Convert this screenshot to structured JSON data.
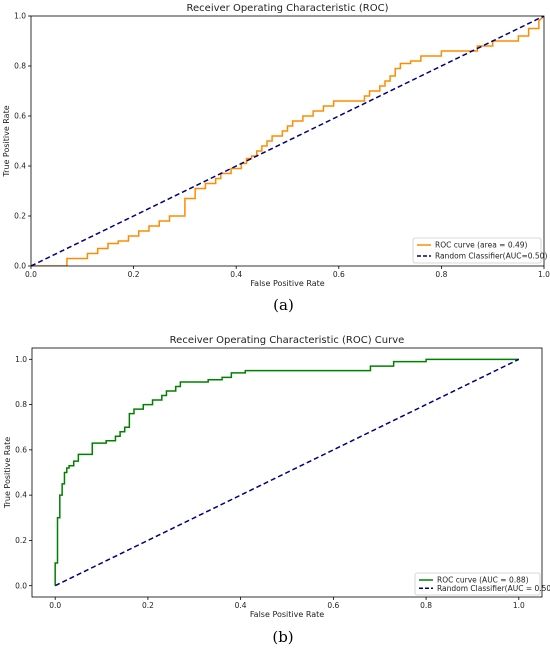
{
  "chart_data": [
    {
      "type": "line",
      "panel_label": "(a)",
      "title": "Receiver Operating Characteristic (ROC)",
      "xlabel": "False Positive Rate",
      "ylabel": "True Positive Rate",
      "xlim": [
        0,
        1
      ],
      "ylim": [
        0,
        1
      ],
      "xticks": [
        "0.0",
        "0.2",
        "0.4",
        "0.6",
        "0.8",
        "1.0"
      ],
      "yticks": [
        "0.0",
        "0.2",
        "0.4",
        "0.6",
        "0.8",
        "1.0"
      ],
      "legend_position": "lower-right",
      "series": [
        {
          "name": "ROC curve (area = 0.49)",
          "color": "#ff8c00",
          "style": "solid",
          "x": [
            0,
            0.07,
            0.07,
            0.08,
            0.08,
            0.11,
            0.11,
            0.13,
            0.13,
            0.15,
            0.15,
            0.17,
            0.17,
            0.19,
            0.19,
            0.21,
            0.21,
            0.23,
            0.23,
            0.25,
            0.25,
            0.27,
            0.27,
            0.3,
            0.3,
            0.32,
            0.32,
            0.34,
            0.34,
            0.36,
            0.36,
            0.37,
            0.37,
            0.39,
            0.39,
            0.41,
            0.41,
            0.42,
            0.42,
            0.43,
            0.43,
            0.44,
            0.44,
            0.45,
            0.45,
            0.46,
            0.46,
            0.47,
            0.47,
            0.49,
            0.49,
            0.5,
            0.5,
            0.51,
            0.51,
            0.53,
            0.53,
            0.55,
            0.55,
            0.57,
            0.57,
            0.59,
            0.59,
            0.64,
            0.64,
            0.65,
            0.65,
            0.66,
            0.66,
            0.68,
            0.68,
            0.69,
            0.69,
            0.7,
            0.7,
            0.71,
            0.71,
            0.72,
            0.72,
            0.74,
            0.74,
            0.76,
            0.76,
            0.8,
            0.8,
            0.87,
            0.87,
            0.9,
            0.9,
            0.95,
            0.95,
            0.97,
            0.97,
            0.99,
            0.99,
            1.0
          ],
          "y": [
            0,
            0,
            0.03,
            0.03,
            0.03,
            0.03,
            0.05,
            0.05,
            0.07,
            0.07,
            0.09,
            0.09,
            0.1,
            0.1,
            0.12,
            0.12,
            0.14,
            0.14,
            0.16,
            0.16,
            0.18,
            0.18,
            0.2,
            0.2,
            0.27,
            0.27,
            0.31,
            0.31,
            0.33,
            0.33,
            0.35,
            0.35,
            0.37,
            0.37,
            0.39,
            0.39,
            0.41,
            0.41,
            0.43,
            0.43,
            0.44,
            0.44,
            0.46,
            0.46,
            0.48,
            0.48,
            0.5,
            0.5,
            0.52,
            0.52,
            0.54,
            0.54,
            0.56,
            0.56,
            0.58,
            0.58,
            0.6,
            0.6,
            0.62,
            0.62,
            0.64,
            0.64,
            0.66,
            0.66,
            0.66,
            0.66,
            0.68,
            0.68,
            0.7,
            0.7,
            0.72,
            0.72,
            0.74,
            0.74,
            0.76,
            0.76,
            0.79,
            0.79,
            0.81,
            0.81,
            0.82,
            0.82,
            0.84,
            0.84,
            0.86,
            0.86,
            0.88,
            0.88,
            0.9,
            0.9,
            0.92,
            0.92,
            0.95,
            0.95,
            0.98,
            1.0
          ]
        },
        {
          "name": "Random Classifier(AUC=0.50)",
          "color": "#000080",
          "style": "dashed",
          "x": [
            0,
            1
          ],
          "y": [
            0,
            1
          ]
        }
      ]
    },
    {
      "type": "line",
      "panel_label": "(b)",
      "title": "Receiver Operating Characteristic (ROC) Curve",
      "xlabel": "False Positive Rate",
      "ylabel": "True Positive Rate",
      "xlim": [
        -0.05,
        1.05
      ],
      "ylim": [
        -0.05,
        1.05
      ],
      "xticks": [
        "0.0",
        "0.2",
        "0.4",
        "0.6",
        "0.8",
        "1.0"
      ],
      "yticks": [
        "0.0",
        "0.2",
        "0.4",
        "0.6",
        "0.8",
        "1.0"
      ],
      "legend_position": "lower-right",
      "series": [
        {
          "name": "ROC curve (AUC = 0.88)",
          "color": "#008000",
          "style": "solid",
          "x": [
            0,
            0,
            0.005,
            0.005,
            0.01,
            0.01,
            0.015,
            0.015,
            0.02,
            0.02,
            0.025,
            0.025,
            0.03,
            0.03,
            0.04,
            0.04,
            0.05,
            0.05,
            0.06,
            0.06,
            0.08,
            0.08,
            0.11,
            0.11,
            0.13,
            0.13,
            0.14,
            0.14,
            0.15,
            0.15,
            0.16,
            0.16,
            0.17,
            0.17,
            0.19,
            0.19,
            0.21,
            0.21,
            0.23,
            0.23,
            0.24,
            0.24,
            0.26,
            0.26,
            0.27,
            0.27,
            0.33,
            0.33,
            0.36,
            0.36,
            0.38,
            0.38,
            0.41,
            0.41,
            0.68,
            0.68,
            0.73,
            0.73,
            0.8,
            0.8,
            1.0
          ],
          "y": [
            0,
            0.1,
            0.1,
            0.3,
            0.3,
            0.4,
            0.4,
            0.45,
            0.45,
            0.5,
            0.5,
            0.52,
            0.52,
            0.53,
            0.53,
            0.55,
            0.55,
            0.58,
            0.58,
            0.58,
            0.58,
            0.63,
            0.63,
            0.64,
            0.64,
            0.66,
            0.66,
            0.68,
            0.68,
            0.7,
            0.7,
            0.76,
            0.76,
            0.78,
            0.78,
            0.8,
            0.8,
            0.82,
            0.82,
            0.84,
            0.84,
            0.86,
            0.86,
            0.88,
            0.88,
            0.9,
            0.9,
            0.91,
            0.91,
            0.92,
            0.92,
            0.94,
            0.94,
            0.95,
            0.95,
            0.97,
            0.97,
            0.99,
            0.99,
            1.0,
            1.0
          ]
        },
        {
          "name": "Random Classifier(AUC = 0.50)",
          "color": "#000080",
          "style": "dashed",
          "x": [
            0,
            1
          ],
          "y": [
            0,
            1
          ]
        }
      ]
    }
  ]
}
